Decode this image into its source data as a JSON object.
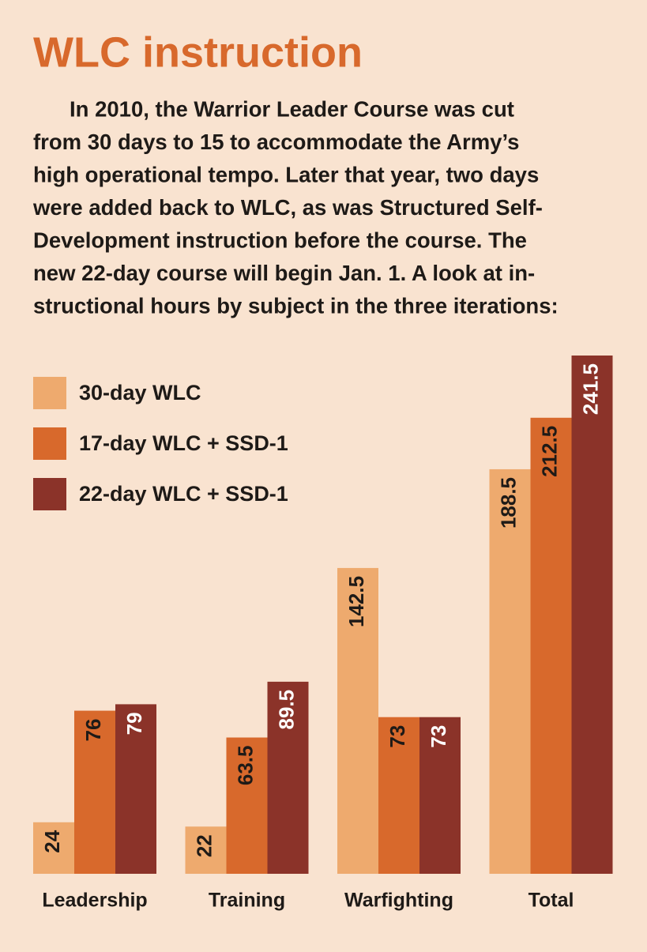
{
  "chart_data": {
    "type": "bar",
    "title": "WLC instruction",
    "subtitle": [
      "In 2010, the Warrior Leader Course was cut",
      "from 30 days to 15 to accommodate the Army’s",
      "high operational tempo. Later that year, two days",
      "were added back to WLC, as was Structured Self-",
      "Development instruction before the course. The",
      "new 22-day course will begin Jan. 1. A look at in-",
      "structional hours by subject in the three iterations:"
    ],
    "categories": [
      "Leadership",
      "Training",
      "Warfighting",
      "Total"
    ],
    "series": [
      {
        "name": "30-day WLC",
        "color": "#eeaa6e",
        "values": [
          24,
          22,
          142.5,
          188.5
        ]
      },
      {
        "name": "17-day WLC + SSD-1",
        "color": "#d8692c",
        "values": [
          76,
          63.5,
          73,
          212.5
        ]
      },
      {
        "name": "22-day WLC + SSD-1",
        "color": "#8b3329",
        "values": [
          79,
          89.5,
          73,
          241.5
        ]
      }
    ]
  }
}
